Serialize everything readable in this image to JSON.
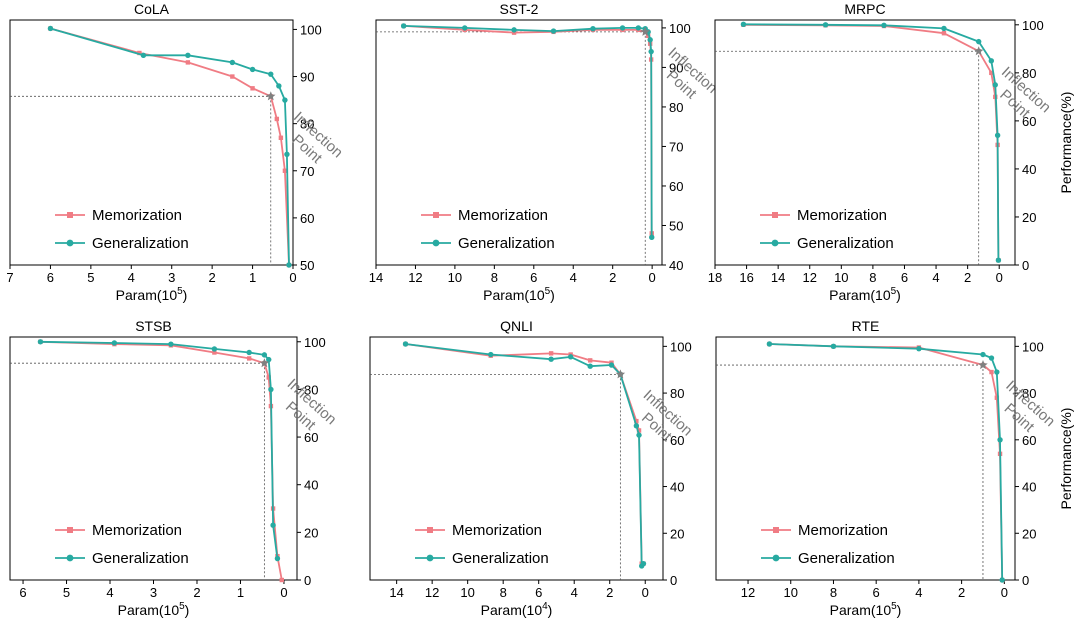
{
  "chart_data": [
    {
      "type": "line",
      "title": "CoLA",
      "xlabel_base": "Param(10",
      "xlabel_exp": "5",
      "xlabel_close": ")",
      "ylabel": "",
      "xlim": [
        7,
        0
      ],
      "ylim": [
        50,
        102
      ],
      "xticks": [
        7,
        6,
        5,
        4,
        3,
        2,
        1,
        0
      ],
      "yticks": [
        50,
        60,
        70,
        80,
        90,
        100
      ],
      "legend": [
        "Memorization",
        "Generalization"
      ],
      "legend_position": "lower-left",
      "inflection": {
        "x": 0.55,
        "y": 85.8,
        "label": [
          "Inflection",
          "Point"
        ]
      },
      "series": [
        {
          "name": "Memorization",
          "color": "#f07c84",
          "marker": "square",
          "x": [
            6.0,
            3.8,
            2.6,
            1.5,
            1.0,
            0.55,
            0.4,
            0.3,
            0.2,
            0.1
          ],
          "y": [
            100.2,
            95.0,
            93.0,
            90.0,
            87.5,
            85.8,
            81.0,
            77.0,
            70.0,
            50.0
          ]
        },
        {
          "name": "Generalization",
          "color": "#27aaa1",
          "marker": "circle",
          "x": [
            6.0,
            3.7,
            2.6,
            1.5,
            1.0,
            0.55,
            0.35,
            0.2,
            0.15,
            0.1
          ],
          "y": [
            100.2,
            94.5,
            94.5,
            93.0,
            91.5,
            90.5,
            88.0,
            85.0,
            73.5,
            50.0
          ]
        }
      ]
    },
    {
      "type": "line",
      "title": "SST-2",
      "xlabel_base": "Param(10",
      "xlabel_exp": "5",
      "xlabel_close": ")",
      "ylabel": "",
      "xlim": [
        14,
        -0.5
      ],
      "ylim": [
        40,
        102
      ],
      "xticks": [
        14,
        12,
        10,
        8,
        6,
        4,
        2,
        0
      ],
      "yticks": [
        40,
        50,
        60,
        70,
        80,
        90,
        100
      ],
      "legend": [
        "Memorization",
        "Generalization"
      ],
      "legend_position": "lower-left",
      "inflection": {
        "x": 0.35,
        "y": 99.0,
        "label": [
          "Inflection",
          "Point"
        ]
      },
      "series": [
        {
          "name": "Memorization",
          "color": "#f07c84",
          "marker": "square",
          "x": [
            12.6,
            9.5,
            7.0,
            5.0,
            3.0,
            1.5,
            0.7,
            0.35,
            0.2,
            0.1,
            0.05,
            0.02
          ],
          "y": [
            100.5,
            99.5,
            98.8,
            99.0,
            99.5,
            99.5,
            99.5,
            99.0,
            98.0,
            96.0,
            92.0,
            48.0
          ]
        },
        {
          "name": "Generalization",
          "color": "#27aaa1",
          "marker": "circle",
          "x": [
            12.6,
            9.5,
            7.0,
            5.0,
            3.0,
            1.5,
            0.7,
            0.35,
            0.2,
            0.1,
            0.05,
            0.02
          ],
          "y": [
            100.5,
            100.0,
            99.5,
            99.2,
            99.8,
            100.0,
            100.0,
            99.8,
            99.0,
            97.0,
            94.0,
            47.0
          ]
        }
      ]
    },
    {
      "type": "line",
      "title": "MRPC",
      "xlabel_base": "Param(10",
      "xlabel_exp": "5",
      "xlabel_close": ")",
      "ylabel": "Performance(%)",
      "xlim": [
        18,
        -1
      ],
      "ylim": [
        0,
        102
      ],
      "xticks": [
        18,
        16,
        14,
        12,
        10,
        8,
        6,
        4,
        2,
        0
      ],
      "yticks": [
        0,
        20,
        40,
        60,
        80,
        100
      ],
      "legend": [
        "Memorization",
        "Generalization"
      ],
      "legend_position": "lower-left",
      "inflection": {
        "x": 1.3,
        "y": 89.0,
        "label": [
          "Inflection",
          "Point"
        ]
      },
      "series": [
        {
          "name": "Memorization",
          "color": "#f07c84",
          "marker": "square",
          "x": [
            16.2,
            11.0,
            7.3,
            3.5,
            1.3,
            0.5,
            0.25,
            0.1,
            0.05
          ],
          "y": [
            100.0,
            99.8,
            99.5,
            96.5,
            89.0,
            80.0,
            70.0,
            50.0,
            2.0
          ]
        },
        {
          "name": "Generalization",
          "color": "#27aaa1",
          "marker": "circle",
          "x": [
            16.2,
            11.0,
            7.3,
            3.5,
            1.3,
            0.5,
            0.25,
            0.1,
            0.05
          ],
          "y": [
            100.2,
            100.0,
            99.8,
            98.5,
            93.0,
            85.0,
            75.0,
            54.0,
            2.0
          ]
        }
      ]
    },
    {
      "type": "line",
      "title": "STSB",
      "xlabel_base": "Param(10",
      "xlabel_exp": "5",
      "xlabel_close": ")",
      "ylabel": "",
      "xlim": [
        6.3,
        -0.3
      ],
      "ylim": [
        0,
        102
      ],
      "xticks": [
        6,
        5,
        4,
        3,
        2,
        1,
        0
      ],
      "yticks": [
        0,
        20,
        40,
        60,
        80,
        100
      ],
      "legend": [
        "Memorization",
        "Generalization"
      ],
      "legend_position": "lower-left",
      "inflection": {
        "x": 0.45,
        "y": 91.0,
        "label": [
          "Inflection",
          "Point"
        ]
      },
      "series": [
        {
          "name": "Memorization",
          "color": "#f07c84",
          "marker": "square",
          "x": [
            5.6,
            3.9,
            2.6,
            1.6,
            0.8,
            0.45,
            0.35,
            0.3,
            0.25,
            0.15,
            0.05
          ],
          "y": [
            100.0,
            99.0,
            98.5,
            95.5,
            93.0,
            91.0,
            85.0,
            73.0,
            30.0,
            10.0,
            0.0
          ]
        },
        {
          "name": "Generalization",
          "color": "#27aaa1",
          "marker": "circle",
          "x": [
            5.6,
            3.9,
            2.6,
            1.6,
            0.8,
            0.45,
            0.35,
            0.3,
            0.25,
            0.15
          ],
          "y": [
            100.0,
            99.5,
            99.0,
            97.0,
            95.5,
            94.5,
            92.5,
            80.0,
            23.0,
            9.0
          ]
        }
      ]
    },
    {
      "type": "line",
      "title": "QNLI",
      "xlabel_base": "Param(10",
      "xlabel_exp": "4",
      "xlabel_close": ")",
      "ylabel": "",
      "xlim": [
        15.5,
        -1
      ],
      "ylim": [
        0,
        104
      ],
      "xticks": [
        14,
        12,
        10,
        8,
        6,
        4,
        2,
        0
      ],
      "yticks": [
        0,
        20,
        40,
        60,
        80,
        100
      ],
      "legend": [
        "Memorization",
        "Generalization"
      ],
      "legend_position": "lower-left",
      "inflection": {
        "x": 1.4,
        "y": 88.0,
        "label": [
          "Inflection",
          "Point"
        ]
      },
      "series": [
        {
          "name": "Memorization",
          "color": "#f07c84",
          "marker": "square",
          "x": [
            13.5,
            8.7,
            5.3,
            4.2,
            3.1,
            1.9,
            1.4,
            0.5,
            0.35,
            0.2,
            0.1
          ],
          "y": [
            101.0,
            96.0,
            97.0,
            96.5,
            94.0,
            93.0,
            88.0,
            68.0,
            64.0,
            7.0,
            7.0
          ]
        },
        {
          "name": "Generalization",
          "color": "#27aaa1",
          "marker": "circle",
          "x": [
            13.5,
            8.7,
            5.3,
            4.2,
            3.1,
            1.9,
            1.4,
            0.5,
            0.35,
            0.2,
            0.1
          ],
          "y": [
            101.0,
            96.5,
            94.5,
            95.5,
            91.5,
            92.0,
            88.0,
            66.0,
            62.0,
            6.0,
            7.0
          ]
        }
      ]
    },
    {
      "type": "line",
      "title": "RTE",
      "xlabel_base": "Param(10",
      "xlabel_exp": "5",
      "xlabel_close": ")",
      "ylabel": "Performance(%)",
      "xlim": [
        13.5,
        -0.5
      ],
      "ylim": [
        0,
        104
      ],
      "xticks": [
        12,
        10,
        8,
        6,
        4,
        2,
        0
      ],
      "yticks": [
        0,
        20,
        40,
        60,
        80,
        100
      ],
      "legend": [
        "Memorization",
        "Generalization"
      ],
      "legend_position": "lower-left",
      "inflection": {
        "x": 1.0,
        "y": 92.0,
        "label": [
          "Inflection",
          "Point"
        ]
      },
      "series": [
        {
          "name": "Memorization",
          "color": "#f07c84",
          "marker": "square",
          "x": [
            11.0,
            8.0,
            4.0,
            1.0,
            0.6,
            0.35,
            0.2,
            0.1
          ],
          "y": [
            101.0,
            100.0,
            99.5,
            92.0,
            89.0,
            78.0,
            54.0,
            0.0
          ]
        },
        {
          "name": "Generalization",
          "color": "#27aaa1",
          "marker": "circle",
          "x": [
            11.0,
            8.0,
            4.0,
            1.0,
            0.6,
            0.35,
            0.2,
            0.1
          ],
          "y": [
            101.0,
            100.0,
            99.0,
            96.5,
            95.0,
            89.0,
            60.0,
            0.0
          ]
        }
      ]
    }
  ]
}
